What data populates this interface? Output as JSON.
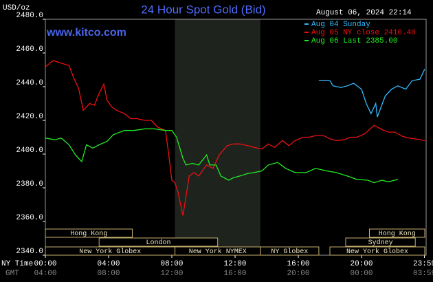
{
  "chart_data": {
    "type": "line",
    "title": "24 Hour Spot Gold (Bid)",
    "y_unit": "USD/oz",
    "timestamp": "August 06, 2024 22:14",
    "watermark": "www.kitco.com",
    "x_axis_label": "NY Time",
    "x2_axis_label": "GMT",
    "xlim": [
      0,
      24
    ],
    "xticks": [
      {
        "value": 0,
        "label": "00:00"
      },
      {
        "value": 4,
        "label": "04:00"
      },
      {
        "value": 8,
        "label": "08:00"
      },
      {
        "value": 12,
        "label": "12:00"
      },
      {
        "value": 16,
        "label": "16:00"
      },
      {
        "value": 20,
        "label": "20:00"
      },
      {
        "value": 23.98,
        "label": "23:59"
      }
    ],
    "x2tick_labels": [
      "04:00",
      "08:00",
      "12:00",
      "16:00",
      "20:00",
      "00:00",
      "03:59"
    ],
    "ylim": [
      2340,
      2480
    ],
    "yticks": [
      {
        "value": 2340,
        "label": "2340.0"
      },
      {
        "value": 2360,
        "label": "2360.0"
      },
      {
        "value": 2380,
        "label": "2380.0"
      },
      {
        "value": 2400,
        "label": "2400.0"
      },
      {
        "value": 2420,
        "label": "2420.0"
      },
      {
        "value": 2440,
        "label": "2440.0"
      },
      {
        "value": 2460,
        "label": "2460.0"
      },
      {
        "value": 2480,
        "label": "2480.0"
      }
    ],
    "grid": false,
    "series": [
      {
        "name": "Aug 04 Sunday",
        "color": "#33bbff",
        "x": [
          17.3,
          18.0,
          18.2,
          18.7,
          19.1,
          19.5,
          20.0,
          20.3,
          20.6,
          20.9,
          21.0,
          21.5,
          21.9,
          22.3,
          22.8,
          23.2,
          23.7,
          24.0
        ],
        "values": [
          2443.5,
          2443.5,
          2440.5,
          2439.5,
          2440.5,
          2442,
          2438.5,
          2430,
          2424,
          2430,
          2422,
          2434.5,
          2438.5,
          2440.5,
          2438.5,
          2443.5,
          2444.5,
          2450.5
        ]
      },
      {
        "name": "Aug 05 NY close 2410.40",
        "color": "#ee1111",
        "x": [
          0,
          0.5,
          1.0,
          1.5,
          1.8,
          2.1,
          2.4,
          2.8,
          3.1,
          3.4,
          3.7,
          3.9,
          4.2,
          4.5,
          5.0,
          5.4,
          5.8,
          6.3,
          6.7,
          7.1,
          7.6,
          7.8,
          8.0,
          8.2,
          8.4,
          8.7,
          8.9,
          9.1,
          9.4,
          9.7,
          10.2,
          10.6,
          11.0,
          11.5,
          11.9,
          12.3,
          12.8,
          13.2,
          13.7,
          14.1,
          14.5,
          15.0,
          15.4,
          15.8,
          16.3,
          16.7,
          17.1,
          17.6,
          18.0,
          18.4,
          18.9,
          19.3,
          19.7,
          20.2,
          20.8,
          21.3,
          21.7,
          22.1,
          22.6,
          23.0,
          23.4,
          24.0
        ],
        "values": [
          2451.8,
          2455.5,
          2454,
          2452.5,
          2445,
          2439,
          2426,
          2430,
          2429,
          2436,
          2441.5,
          2432,
          2428,
          2426,
          2424,
          2421,
          2421,
          2420,
          2420,
          2416,
          2414,
          2400,
          2384.5,
          2383,
          2377,
          2363.5,
          2375,
          2387,
          2389,
          2387,
          2393.5,
          2391.5,
          2399.5,
          2405,
          2406,
          2406,
          2405,
          2404,
          2403,
          2406,
          2404,
          2408,
          2405,
          2408,
          2410,
          2410,
          2411,
          2411,
          2409,
          2408,
          2408.5,
          2410,
          2410,
          2412,
          2417,
          2414.5,
          2413,
          2413,
          2410.5,
          2409.5,
          2409,
          2408
        ]
      },
      {
        "name": "Aug 06 Last 2385.00",
        "color": "#22ee22",
        "x": [
          0,
          0.6,
          1.0,
          1.5,
          1.9,
          2.3,
          2.6,
          3.0,
          3.4,
          3.9,
          4.3,
          5.0,
          5.6,
          6.3,
          6.9,
          7.6,
          8.0,
          8.3,
          8.7,
          8.9,
          9.3,
          9.7,
          10.2,
          10.4,
          10.8,
          11.1,
          11.6,
          11.9,
          12.3,
          12.8,
          13.2,
          13.7,
          14.1,
          14.7,
          15.2,
          15.8,
          16.5,
          17.1,
          17.8,
          18.4,
          19.1,
          19.7,
          20.4,
          20.8,
          21.3,
          21.7,
          22.3
        ],
        "values": [
          2409.5,
          2408.5,
          2409.5,
          2405.5,
          2399.5,
          2395.5,
          2405.5,
          2403.5,
          2405.5,
          2407.5,
          2411.5,
          2414,
          2414,
          2415,
          2415,
          2414,
          2414,
          2410,
          2397.5,
          2393.5,
          2394.5,
          2393.5,
          2399.5,
          2393.5,
          2393.5,
          2387,
          2384.5,
          2386,
          2387,
          2388.5,
          2389,
          2390,
          2393.5,
          2395,
          2391.5,
          2389,
          2389,
          2391.5,
          2390,
          2389,
          2387,
          2385,
          2384.5,
          2383,
          2384.5,
          2383.5,
          2385
        ]
      }
    ],
    "session_rows": [
      [
        {
          "name": "Hong Kong",
          "start": 0,
          "end": 5.5
        },
        {
          "name": "Hong Kong",
          "start": 20.5,
          "end": 24
        }
      ],
      [
        {
          "name": "London",
          "start": 3.4,
          "end": 10.9
        },
        {
          "name": "Sydney",
          "start": 19.0,
          "end": 23.4
        }
      ],
      [
        {
          "name": "New York Globex",
          "start": 0,
          "end": 8.2
        },
        {
          "name": "New York NYMEX",
          "start": 8.2,
          "end": 13.6,
          "shaded": true
        },
        {
          "name": "NY Globex",
          "start": 13.6,
          "end": 17.3
        },
        {
          "name": "New York Globex",
          "start": 18.0,
          "end": 24
        }
      ]
    ]
  }
}
